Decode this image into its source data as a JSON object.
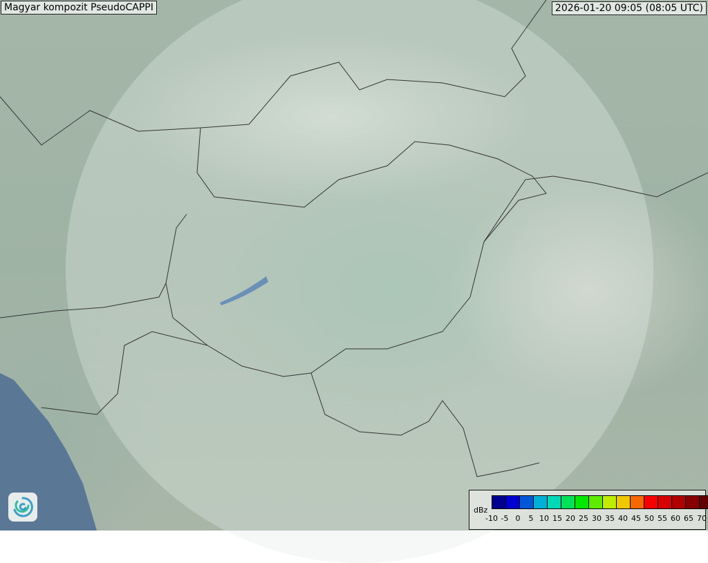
{
  "title": "Magyar kompozit  PseudoCAPPI",
  "timestamp": "2026-01-20 09:05 (08:05 UTC)",
  "legend": {
    "unit": "dBz",
    "ticks": [
      "-10",
      "-5",
      "0",
      "5",
      "10",
      "15",
      "20",
      "25",
      "30",
      "35",
      "40",
      "45",
      "50",
      "55",
      "60",
      "65",
      "70"
    ],
    "colors": [
      "#000090",
      "#0000d0",
      "#0058d8",
      "#00b0d8",
      "#00d8b8",
      "#00e058",
      "#00e800",
      "#60ec00",
      "#c0ec00",
      "#f0c800",
      "#f86800",
      "#f80000",
      "#d80000",
      "#b00000",
      "#880000",
      "#600000"
    ]
  },
  "logo": {
    "icon": "swirl-logo-icon"
  }
}
